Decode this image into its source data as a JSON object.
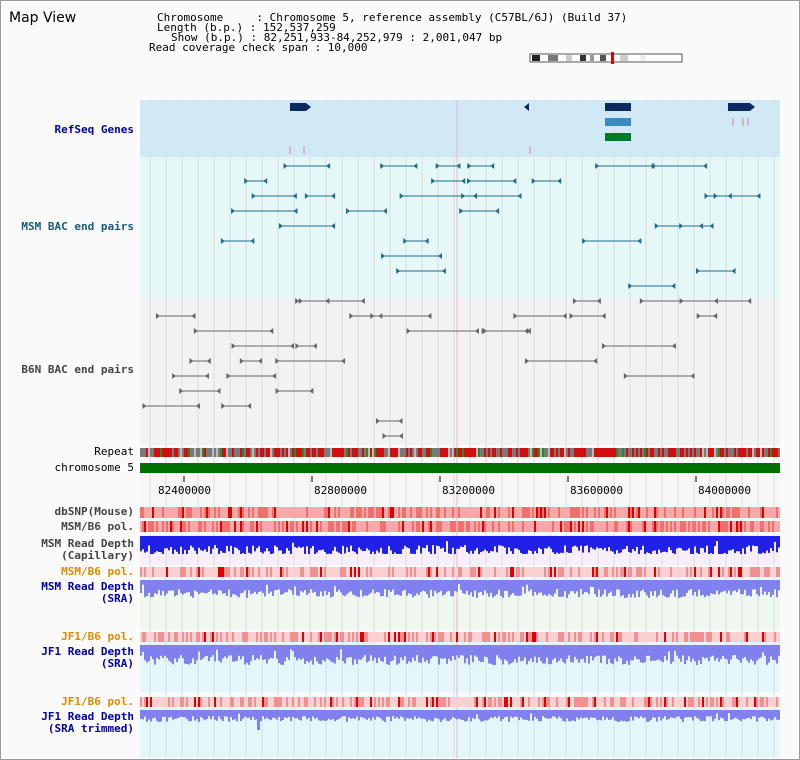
{
  "title": "Map View",
  "info": {
    "chromosome": "Chromosome     : Chromosome 5, reference assembly (C57BL/6J) (Build 37)",
    "length": "Length (b.p.) : 152,537,259",
    "show": "Show (b.p.) : 82,251,933-84,252,979 : 2,001,047 bp",
    "coverage": "Read coverage check span : 10,000"
  },
  "tracks": {
    "refseq": "RefSeq Genes",
    "msm_bac": "MSM BAC end pairs",
    "b6n_bac": "B6N BAC end pairs",
    "repeat": "Repeat",
    "chromosome": "chromosome 5",
    "dbsnp": "dbSNP(Mouse)",
    "msm_b6_pol": "MSM/B6 pol.",
    "msm_depth_cap": "MSM Read Depth\n(Capillary)",
    "msm_b6_pol_2": "MSM/B6 pol.",
    "msm_depth_sra": "MSM Read Depth\n(SRA)",
    "jf1_b6_pol": "JF1/B6 pol.",
    "jf1_depth_sra": "JF1 Read Depth\n(SRA)",
    "jf1_b6_pol_2": "JF1/B6 pol.",
    "jf1_depth_trim": "JF1 Read Depth\n(SRA trimmed)"
  },
  "axis": {
    "ticks": [
      "82400000",
      "82800000",
      "83200000",
      "83600000",
      "84000000"
    ]
  },
  "colors": {
    "refseq_bg": "#cfeaf6",
    "bac_bg": "#e6f7f8",
    "b6n_bg": "#f2f2f4",
    "msm_feature": "#1f6f8b",
    "b6n_feature": "#666666",
    "chromosome_bar": "#007000",
    "depth_blue": "#2020e8",
    "depth_light": "#8080ee"
  }
}
